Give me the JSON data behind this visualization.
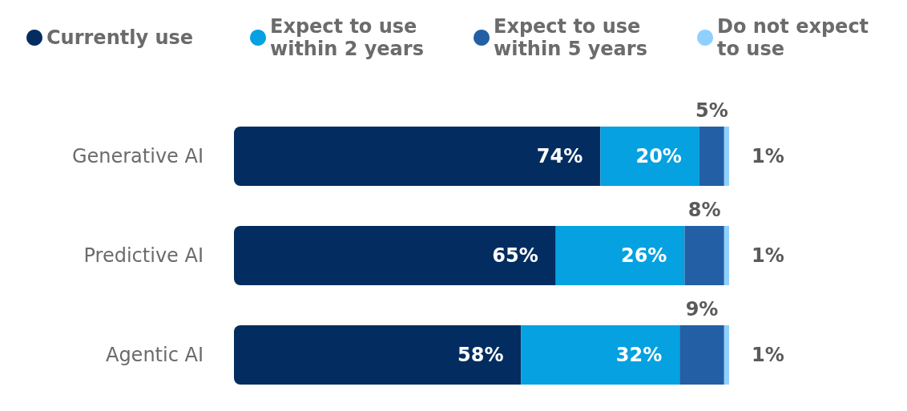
{
  "chart_data": {
    "type": "bar",
    "orientation": "horizontal",
    "stacked": true,
    "legend": "top left",
    "tick_labels": "y",
    "xlim": [
      0,
      100
    ],
    "categories": [
      "Generative AI",
      "Predictive AI",
      "Agentic AI"
    ],
    "series": [
      {
        "name": "Currently use",
        "color": "#032d60",
        "values": [
          74,
          65,
          58
        ],
        "value_labels": [
          "74%",
          "65%",
          "58%"
        ]
      },
      {
        "name": "Expect to use within 2 years",
        "color": "#05a1e0",
        "values": [
          20,
          26,
          32
        ],
        "value_labels": [
          "20%",
          "26%",
          "32%"
        ]
      },
      {
        "name": "Expect to use within 5 years",
        "color": "#235fa5",
        "values": [
          5,
          8,
          9
        ],
        "value_labels": [
          "5%",
          "8%",
          "9%"
        ]
      },
      {
        "name": "Do not expect to use",
        "color": "#90d0fe",
        "values": [
          1,
          1,
          1
        ],
        "value_labels": [
          "1%",
          "1%",
          "1%"
        ]
      }
    ]
  }
}
